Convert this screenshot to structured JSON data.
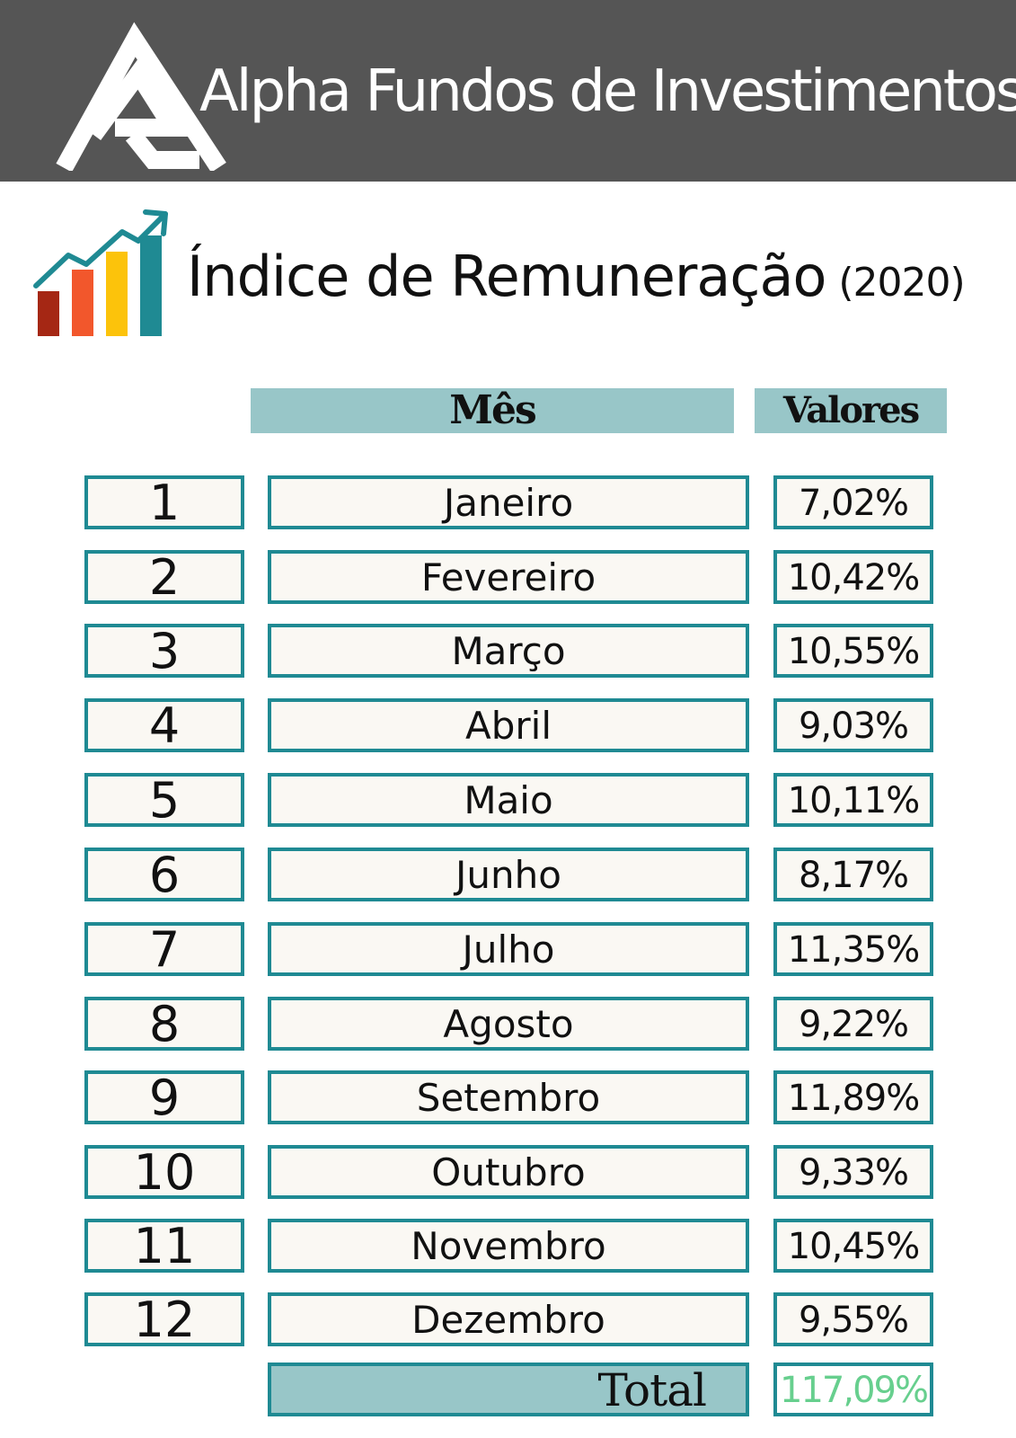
{
  "header": {
    "brand": "Alpha Fundos de Investimentos",
    "logo_icon": "triangle-logo-icon",
    "background": "#555555"
  },
  "title": {
    "main": "Índice de Remuneração",
    "year": "(2020)",
    "icon": "growth-chart-icon"
  },
  "table": {
    "headers": {
      "month": "Mês",
      "value": "Valores"
    },
    "rows": [
      {
        "num": "1",
        "month": "Janeiro",
        "value": "7,02%"
      },
      {
        "num": "2",
        "month": "Fevereiro",
        "value": "10,42%"
      },
      {
        "num": "3",
        "month": "Março",
        "value": "10,55%"
      },
      {
        "num": "4",
        "month": "Abril",
        "value": "9,03%"
      },
      {
        "num": "5",
        "month": "Maio",
        "value": "10,11%"
      },
      {
        "num": "6",
        "month": "Junho",
        "value": "8,17%"
      },
      {
        "num": "7",
        "month": "Julho",
        "value": "11,35%"
      },
      {
        "num": "8",
        "month": "Agosto",
        "value": "9,22%"
      },
      {
        "num": "9",
        "month": "Setembro",
        "value": "11,89%"
      },
      {
        "num": "10",
        "month": "Outubro",
        "value": "9,33%"
      },
      {
        "num": "11",
        "month": "Novembro",
        "value": "10,45%"
      },
      {
        "num": "12",
        "month": "Dezembro",
        "value": "9,55%"
      }
    ],
    "total_label": "Total",
    "total_value": "117,09%"
  },
  "colors": {
    "accent_border": "#1f8a93",
    "header_fill": "#98c6c8",
    "total_value": "#67cf8e"
  }
}
